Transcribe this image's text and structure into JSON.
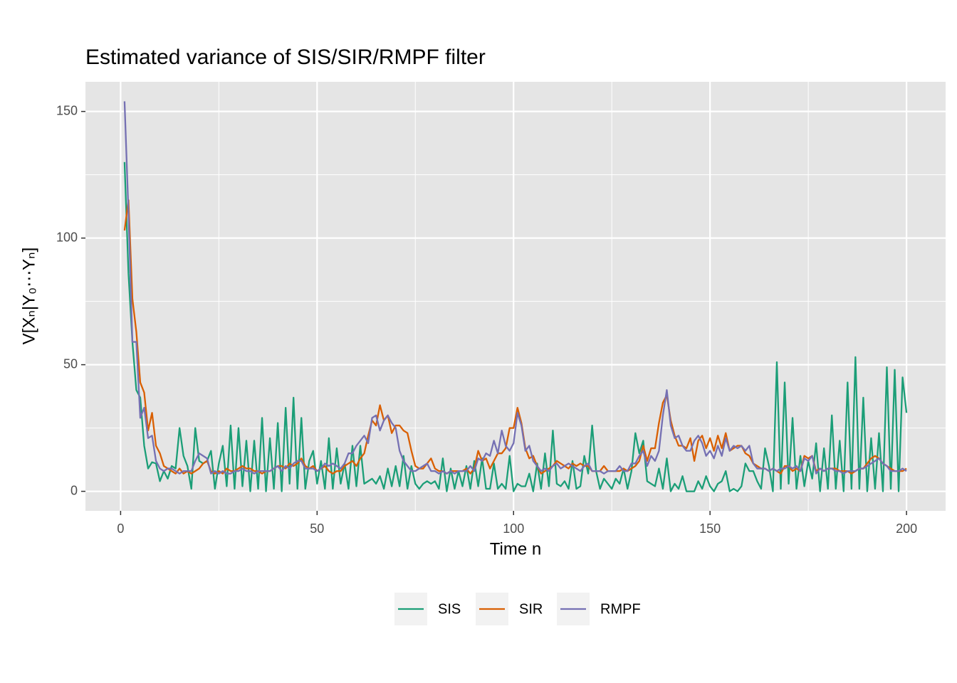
{
  "chart_data": {
    "type": "line",
    "title": "Estimated variance of SIS/SIR/RMPF filter",
    "xlabel": "Time n",
    "ylabel": "V[Xₙ|Y₀⋯Yₙ]",
    "xlim": [
      -8.95,
      209.95
    ],
    "ylim": [
      -7.7,
      161.7
    ],
    "xticks": [
      0,
      50,
      100,
      150,
      200
    ],
    "yticks": [
      0,
      50,
      100,
      150
    ],
    "xminor": [
      25,
      75,
      125,
      175
    ],
    "yminor": [
      25,
      75,
      125
    ],
    "grid": true,
    "legend": "bottom",
    "x": [
      1,
      2,
      3,
      4,
      5,
      6,
      7,
      8,
      9,
      10,
      11,
      12,
      13,
      14,
      15,
      16,
      17,
      18,
      19,
      20,
      21,
      22,
      23,
      24,
      25,
      26,
      27,
      28,
      29,
      30,
      31,
      32,
      33,
      34,
      35,
      36,
      37,
      38,
      39,
      40,
      41,
      42,
      43,
      44,
      45,
      46,
      47,
      48,
      49,
      50,
      51,
      52,
      53,
      54,
      55,
      56,
      57,
      58,
      59,
      60,
      61,
      62,
      63,
      64,
      65,
      66,
      67,
      68,
      69,
      70,
      71,
      72,
      73,
      74,
      75,
      76,
      77,
      78,
      79,
      80,
      81,
      82,
      83,
      84,
      85,
      86,
      87,
      88,
      89,
      90,
      91,
      92,
      93,
      94,
      95,
      96,
      97,
      98,
      99,
      100,
      101,
      102,
      103,
      104,
      105,
      106,
      107,
      108,
      109,
      110,
      111,
      112,
      113,
      114,
      115,
      116,
      117,
      118,
      119,
      120,
      121,
      122,
      123,
      124,
      125,
      126,
      127,
      128,
      129,
      130,
      131,
      132,
      133,
      134,
      135,
      136,
      137,
      138,
      139,
      140,
      141,
      142,
      143,
      144,
      145,
      146,
      147,
      148,
      149,
      150,
      151,
      152,
      153,
      154,
      155,
      156,
      157,
      158,
      159,
      160,
      161,
      162,
      163,
      164,
      165,
      166,
      167,
      168,
      169,
      170,
      171,
      172,
      173,
      174,
      175,
      176,
      177,
      178,
      179,
      180,
      181,
      182,
      183,
      184,
      185,
      186,
      187,
      188,
      189,
      190,
      191,
      192,
      193,
      194,
      195,
      196,
      197,
      198,
      199,
      200
    ],
    "series": [
      {
        "name": "SIS",
        "color": "#1b9e77",
        "values": [
          130,
          86,
          59,
          40,
          37,
          18,
          9,
          11.5,
          11,
          4,
          8,
          5,
          10,
          9,
          25,
          14,
          10,
          1,
          25,
          12,
          11,
          12,
          16,
          1,
          11,
          18,
          2,
          26,
          1,
          25,
          2,
          20,
          0,
          20,
          1,
          29,
          0,
          21,
          1,
          27,
          0,
          33,
          3,
          37,
          1,
          29,
          1,
          12,
          16,
          3,
          12,
          1,
          21,
          1,
          17,
          3,
          11,
          1,
          18,
          2,
          18,
          3,
          4,
          5,
          3,
          6,
          1,
          9,
          2,
          10,
          2,
          14,
          1,
          10,
          3,
          1,
          3,
          4,
          3,
          4,
          1,
          13,
          0,
          9,
          1,
          8,
          2,
          10,
          1,
          12,
          2,
          13,
          1,
          1,
          11,
          1,
          3,
          1,
          14,
          0,
          3,
          2,
          2,
          7,
          0,
          11,
          1,
          15,
          2,
          24,
          3,
          2,
          4,
          1,
          12,
          1,
          2,
          14,
          7,
          26,
          8,
          1,
          5,
          3,
          1,
          5,
          3,
          9,
          1,
          8,
          23,
          15,
          20,
          4,
          3,
          2,
          9,
          1,
          13,
          0,
          3,
          1,
          6,
          0,
          0,
          0,
          4,
          1,
          6,
          2,
          0,
          3,
          4,
          8,
          0,
          1,
          0,
          2,
          11,
          8,
          8,
          4,
          1,
          17,
          10,
          0,
          51,
          1,
          43,
          3,
          29,
          1,
          14,
          2,
          12,
          5,
          19,
          0,
          17,
          1,
          30,
          1,
          20,
          0,
          43,
          1,
          53,
          1,
          37,
          0,
          21,
          1,
          23,
          0,
          49,
          1,
          48,
          0,
          45,
          31
        ]
      },
      {
        "name": "SIR",
        "color": "#d95f02",
        "values": [
          103,
          115,
          76,
          63,
          43,
          39,
          24,
          31,
          18,
          15,
          10,
          9,
          8,
          7,
          9,
          7,
          8,
          7,
          8,
          9,
          11,
          12,
          8,
          7,
          8,
          7,
          9,
          8,
          8,
          9,
          10,
          9,
          9,
          8,
          8,
          7,
          8,
          8,
          9,
          10,
          10,
          9,
          11,
          10,
          11,
          13,
          10,
          9,
          10,
          8,
          9,
          10,
          8,
          7,
          8,
          8,
          10,
          11,
          12,
          10,
          13,
          15,
          22,
          28,
          26,
          34,
          28,
          30,
          23,
          26,
          26,
          24,
          23,
          16,
          10,
          9,
          9,
          11,
          13,
          9,
          8,
          8,
          7,
          8,
          8,
          8,
          8,
          9,
          7,
          9,
          16,
          12,
          13,
          9,
          12,
          15,
          15,
          17,
          25,
          25,
          33,
          27,
          17,
          13,
          14,
          10,
          7,
          8,
          9,
          10,
          12,
          11,
          10,
          9,
          11,
          10,
          11,
          10,
          10,
          8,
          8,
          8,
          10,
          8,
          8,
          8,
          8,
          9,
          8,
          9,
          10,
          12,
          18,
          12,
          17,
          17,
          27,
          35,
          38,
          28,
          22,
          18,
          18,
          17,
          21,
          12,
          20,
          22,
          17,
          21,
          16,
          22,
          17,
          23,
          16,
          17,
          18,
          18,
          15,
          14,
          11,
          10,
          9,
          9,
          8,
          9,
          8,
          7,
          10,
          10,
          8,
          9,
          8,
          14,
          13,
          14,
          8,
          9,
          8,
          9,
          9,
          9,
          8,
          8,
          8,
          7,
          8,
          9,
          9,
          11,
          13,
          14,
          13,
          11,
          10,
          9,
          8,
          8,
          8,
          9
        ]
      },
      {
        "name": "RMPF",
        "color": "#7570b3",
        "values": [
          154,
          110,
          59,
          59,
          29,
          33,
          21,
          22,
          12,
          9,
          8,
          9,
          9,
          8,
          7,
          8,
          8,
          8,
          12,
          15,
          14,
          13,
          7,
          8,
          7,
          8,
          7,
          7,
          8,
          8,
          9,
          8,
          8,
          7,
          8,
          8,
          8,
          8,
          9,
          10,
          8,
          10,
          9,
          11,
          12,
          12,
          9,
          9,
          9,
          8,
          9,
          11,
          10,
          11,
          10,
          9,
          11,
          15,
          15,
          18,
          20,
          22,
          19,
          29,
          30,
          24,
          28,
          30,
          27,
          25,
          16,
          12,
          10,
          8,
          8,
          9,
          10,
          11,
          8,
          8,
          7,
          8,
          7,
          8,
          7,
          8,
          8,
          8,
          10,
          8,
          13,
          12,
          15,
          14,
          20,
          15,
          24,
          18,
          16,
          19,
          31,
          26,
          16,
          18,
          12,
          10,
          8,
          9,
          8,
          10,
          11,
          9,
          10,
          11,
          10,
          9,
          8,
          10,
          11,
          8,
          8,
          8,
          7,
          8,
          8,
          8,
          10,
          8,
          8,
          11,
          11,
          14,
          16,
          10,
          14,
          12,
          16,
          30,
          40,
          26,
          21,
          22,
          18,
          16,
          16,
          20,
          22,
          19,
          14,
          16,
          13,
          18,
          14,
          21,
          16,
          18,
          17,
          18,
          16,
          18,
          11,
          9,
          9,
          9,
          8,
          9,
          8,
          9,
          9,
          10,
          9,
          10,
          8,
          13,
          12,
          14,
          7,
          9,
          8,
          9,
          9,
          8,
          8,
          7,
          8,
          8,
          8,
          9,
          9,
          10,
          11,
          12,
          13,
          11,
          10,
          8,
          8,
          8,
          9,
          8
        ]
      }
    ]
  }
}
